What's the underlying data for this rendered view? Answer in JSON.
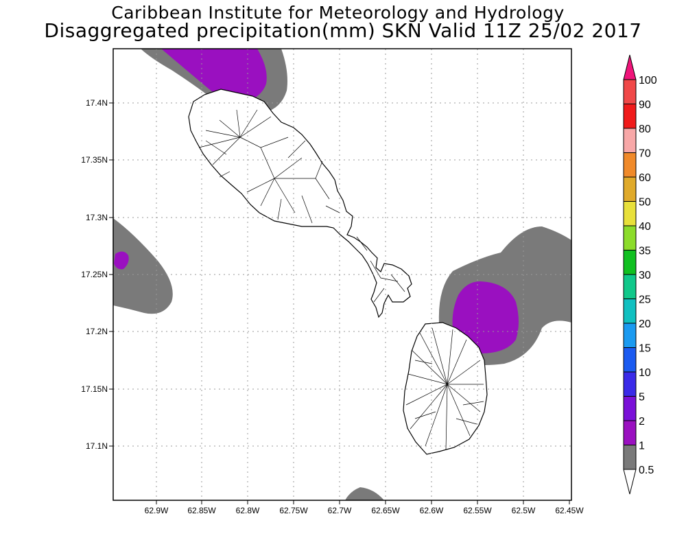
{
  "title": {
    "line1": "Caribbean Institute for Meteorology and Hydrology",
    "line2": "Disaggregated precipitation(mm) SKN Valid 11Z 25/02 2017"
  },
  "axes": {
    "x_ticks": [
      "62.9W",
      "62.85W",
      "62.8W",
      "62.75W",
      "62.7W",
      "62.65W",
      "62.6W",
      "62.55W",
      "62.5W",
      "62.45W"
    ],
    "y_ticks": [
      "17.4N",
      "17.35N",
      "17.3N",
      "17.25N",
      "17.2N",
      "17.15N",
      "17.1N"
    ]
  },
  "colorbar": {
    "labels": [
      "100",
      "90",
      "80",
      "70",
      "60",
      "50",
      "40",
      "35",
      "30",
      "25",
      "20",
      "15",
      "10",
      "5",
      "2",
      "1",
      "0.5"
    ],
    "colors": [
      "#f0147a",
      "#f04848",
      "#f01a1a",
      "#f8a8a8",
      "#f08a2a",
      "#e0aa2a",
      "#e8e03a",
      "#8cdc2a",
      "#10c020",
      "#10c88a",
      "#10c0c0",
      "#1a9af0",
      "#1a5af0",
      "#3a2ae8",
      "#7a10d8",
      "#9a10c0",
      "#7a7a7a",
      "#ffffff"
    ]
  },
  "legend_colors": {
    "gray_0_5_to_1": "#7a7a7a",
    "purple_1_to_2": "#9a10c0"
  }
}
